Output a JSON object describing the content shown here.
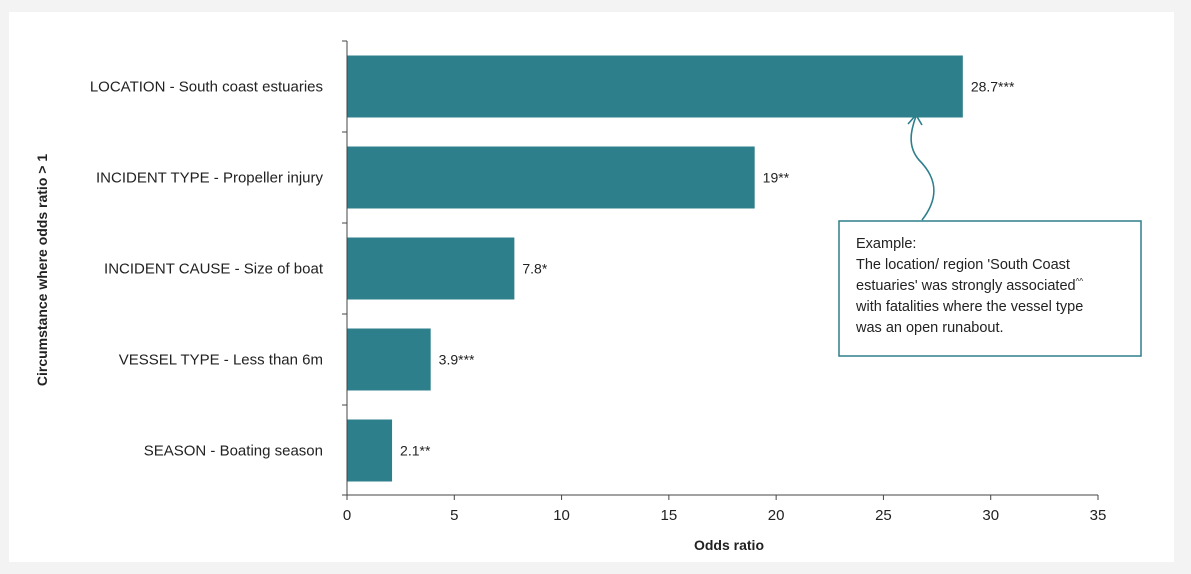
{
  "chart_data": {
    "type": "bar",
    "orientation": "horizontal",
    "categories": [
      "LOCATION - South coast estuaries",
      "INCIDENT TYPE - Propeller injury",
      "INCIDENT CAUSE - Size of boat",
      "VESSEL TYPE - Less than 6m",
      "SEASON - Boating season"
    ],
    "values": [
      28.7,
      19,
      7.8,
      3.9,
      2.1
    ],
    "data_labels": [
      "28.7***",
      "19**",
      "7.8*",
      "3.9***",
      "2.1**"
    ],
    "xlabel": "Odds ratio",
    "ylabel": "Circumstance where odds ratio > 1",
    "xlim": [
      0,
      35
    ],
    "xticks": [
      "0",
      "5",
      "10",
      "15",
      "20",
      "25",
      "30",
      "35"
    ],
    "xtick_values": [
      0,
      5,
      10,
      15,
      20,
      25,
      30,
      35
    ],
    "grid": false,
    "bar_color": "#2e7f8c",
    "annotation": {
      "points_to": "LOCATION - South coast estuaries",
      "lines": [
        "Example:",
        "The location/ region 'South Coast",
        "estuaries' was strongly associated^^",
        "with fatalities where the vessel type",
        "was an open runabout."
      ]
    }
  },
  "colors": {
    "bar": "#2e7f8c",
    "callout_border": "#2e7f8c",
    "axis": "#444444",
    "text": "#222222"
  }
}
